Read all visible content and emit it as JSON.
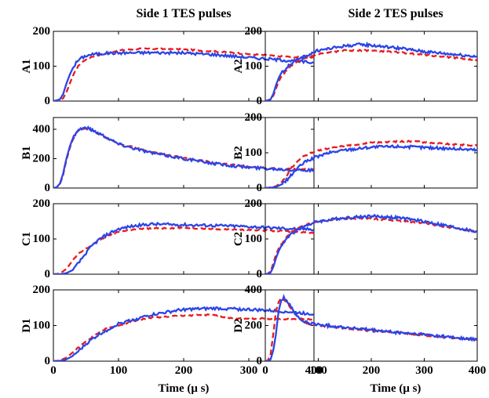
{
  "chart_data": {
    "type": "line",
    "layout": "4x2 grid of panels",
    "column_titles": [
      "Side 1 TES pulses",
      "Side 2 TES pulses"
    ],
    "xlabel": "Time (μ s)",
    "xlim": [
      0,
      400
    ],
    "x_ticks": [
      0,
      100,
      200,
      300,
      400
    ],
    "series_styles": [
      {
        "name": "series 1",
        "color": "#2b45e8",
        "style": "solid"
      },
      {
        "name": "series 2",
        "color": "#e81b1b",
        "style": "dashed"
      }
    ],
    "panels": [
      {
        "label": "A1",
        "ylim": [
          0,
          200
        ],
        "y_ticks": [
          0,
          100,
          200
        ],
        "blue": [
          [
            0,
            0
          ],
          [
            5,
            2
          ],
          [
            10,
            5
          ],
          [
            15,
            20
          ],
          [
            20,
            50
          ],
          [
            25,
            75
          ],
          [
            30,
            95
          ],
          [
            35,
            110
          ],
          [
            40,
            120
          ],
          [
            50,
            130
          ],
          [
            60,
            134
          ],
          [
            80,
            137
          ],
          [
            100,
            138
          ],
          [
            150,
            139
          ],
          [
            200,
            138
          ],
          [
            250,
            133
          ],
          [
            300,
            125
          ],
          [
            350,
            118
          ],
          [
            400,
            110
          ]
        ],
        "red": [
          [
            0,
            0
          ],
          [
            10,
            3
          ],
          [
            15,
            8
          ],
          [
            20,
            25
          ],
          [
            25,
            50
          ],
          [
            30,
            72
          ],
          [
            35,
            90
          ],
          [
            40,
            105
          ],
          [
            50,
            120
          ],
          [
            60,
            128
          ],
          [
            80,
            137
          ],
          [
            100,
            145
          ],
          [
            130,
            150
          ],
          [
            150,
            150
          ],
          [
            200,
            148
          ],
          [
            250,
            142
          ],
          [
            300,
            135
          ],
          [
            350,
            128
          ],
          [
            400,
            124
          ]
        ]
      },
      {
        "label": "B1",
        "ylim": [
          0,
          480
        ],
        "y_ticks": [
          0,
          200,
          400
        ],
        "blue": [
          [
            0,
            0
          ],
          [
            5,
            5
          ],
          [
            10,
            30
          ],
          [
            15,
            100
          ],
          [
            20,
            200
          ],
          [
            25,
            280
          ],
          [
            30,
            340
          ],
          [
            35,
            380
          ],
          [
            40,
            400
          ],
          [
            45,
            408
          ],
          [
            50,
            410
          ],
          [
            55,
            405
          ],
          [
            60,
            395
          ],
          [
            80,
            350
          ],
          [
            100,
            300
          ],
          [
            150,
            240
          ],
          [
            200,
            200
          ],
          [
            250,
            165
          ],
          [
            300,
            140
          ],
          [
            350,
            128
          ],
          [
            400,
            120
          ]
        ],
        "red": [
          [
            0,
            0
          ],
          [
            5,
            5
          ],
          [
            10,
            25
          ],
          [
            15,
            90
          ],
          [
            20,
            190
          ],
          [
            25,
            270
          ],
          [
            30,
            330
          ],
          [
            35,
            375
          ],
          [
            40,
            395
          ],
          [
            45,
            405
          ],
          [
            50,
            408
          ],
          [
            55,
            400
          ],
          [
            60,
            390
          ],
          [
            80,
            345
          ],
          [
            100,
            305
          ],
          [
            150,
            245
          ],
          [
            200,
            205
          ],
          [
            250,
            170
          ],
          [
            300,
            145
          ],
          [
            350,
            130
          ],
          [
            400,
            125
          ]
        ]
      },
      {
        "label": "B2",
        "ylim": [
          0,
          200
        ],
        "y_ticks": [
          0,
          100,
          200
        ],
        "blue": [
          [
            0,
            0
          ],
          [
            10,
            1
          ],
          [
            20,
            3
          ],
          [
            30,
            10
          ],
          [
            40,
            22
          ],
          [
            50,
            38
          ],
          [
            60,
            55
          ],
          [
            70,
            68
          ],
          [
            80,
            78
          ],
          [
            100,
            90
          ],
          [
            120,
            100
          ],
          [
            150,
            108
          ],
          [
            200,
            116
          ],
          [
            250,
            118
          ],
          [
            300,
            115
          ],
          [
            350,
            112
          ],
          [
            400,
            108
          ]
        ],
        "red": [
          [
            0,
            0
          ],
          [
            10,
            2
          ],
          [
            20,
            5
          ],
          [
            30,
            15
          ],
          [
            40,
            35
          ],
          [
            50,
            58
          ],
          [
            60,
            75
          ],
          [
            70,
            88
          ],
          [
            80,
            96
          ],
          [
            100,
            106
          ],
          [
            120,
            112
          ],
          [
            150,
            120
          ],
          [
            200,
            128
          ],
          [
            250,
            132
          ],
          [
            280,
            133
          ],
          [
            300,
            130
          ],
          [
            350,
            124
          ],
          [
            400,
            120
          ]
        ]
      },
      {
        "label": "C1",
        "ylim": [
          0,
          200
        ],
        "y_ticks": [
          0,
          100,
          200
        ],
        "blue": [
          [
            0,
            0
          ],
          [
            10,
            0
          ],
          [
            20,
            3
          ],
          [
            30,
            12
          ],
          [
            40,
            35
          ],
          [
            50,
            60
          ],
          [
            60,
            82
          ],
          [
            70,
            98
          ],
          [
            80,
            110
          ],
          [
            90,
            120
          ],
          [
            100,
            128
          ],
          [
            120,
            136
          ],
          [
            150,
            142
          ],
          [
            200,
            140
          ],
          [
            250,
            138
          ],
          [
            300,
            135
          ],
          [
            350,
            130
          ],
          [
            400,
            127
          ]
        ],
        "red": [
          [
            0,
            0
          ],
          [
            10,
            2
          ],
          [
            20,
            15
          ],
          [
            30,
            40
          ],
          [
            40,
            60
          ],
          [
            50,
            72
          ],
          [
            60,
            84
          ],
          [
            70,
            96
          ],
          [
            80,
            106
          ],
          [
            90,
            114
          ],
          [
            100,
            120
          ],
          [
            120,
            126
          ],
          [
            150,
            130
          ],
          [
            200,
            132
          ],
          [
            250,
            128
          ],
          [
            300,
            126
          ],
          [
            350,
            122
          ],
          [
            400,
            118
          ]
        ]
      },
      {
        "label": "C2",
        "ylim": [
          0,
          200
        ],
        "y_ticks": [
          0,
          100,
          200
        ],
        "blue": [
          [
            0,
            0
          ],
          [
            5,
            1
          ],
          [
            10,
            5
          ],
          [
            15,
            20
          ],
          [
            20,
            45
          ],
          [
            25,
            65
          ],
          [
            30,
            80
          ],
          [
            40,
            100
          ],
          [
            50,
            115
          ],
          [
            60,
            125
          ],
          [
            80,
            140
          ],
          [
            100,
            150
          ],
          [
            150,
            160
          ],
          [
            200,
            165
          ],
          [
            250,
            160
          ],
          [
            300,
            150
          ],
          [
            350,
            135
          ],
          [
            400,
            120
          ]
        ],
        "red": [
          [
            0,
            0
          ],
          [
            5,
            2
          ],
          [
            10,
            8
          ],
          [
            15,
            30
          ],
          [
            20,
            55
          ],
          [
            25,
            72
          ],
          [
            30,
            85
          ],
          [
            40,
            105
          ],
          [
            50,
            120
          ],
          [
            60,
            130
          ],
          [
            80,
            142
          ],
          [
            100,
            150
          ],
          [
            150,
            158
          ],
          [
            200,
            158
          ],
          [
            250,
            152
          ],
          [
            300,
            145
          ],
          [
            350,
            132
          ],
          [
            400,
            120
          ]
        ]
      },
      {
        "label": "D1",
        "ylim": [
          0,
          200
        ],
        "y_ticks": [
          0,
          100,
          200
        ],
        "blue": [
          [
            0,
            0
          ],
          [
            10,
            1
          ],
          [
            20,
            5
          ],
          [
            30,
            15
          ],
          [
            40,
            30
          ],
          [
            50,
            48
          ],
          [
            60,
            62
          ],
          [
            70,
            75
          ],
          [
            80,
            85
          ],
          [
            90,
            95
          ],
          [
            100,
            105
          ],
          [
            120,
            115
          ],
          [
            150,
            130
          ],
          [
            200,
            145
          ],
          [
            250,
            148
          ],
          [
            300,
            145
          ],
          [
            350,
            140
          ],
          [
            400,
            132
          ]
        ],
        "red": [
          [
            0,
            0
          ],
          [
            10,
            2
          ],
          [
            20,
            10
          ],
          [
            30,
            25
          ],
          [
            40,
            40
          ],
          [
            50,
            55
          ],
          [
            60,
            68
          ],
          [
            70,
            80
          ],
          [
            80,
            90
          ],
          [
            100,
            100
          ],
          [
            120,
            112
          ],
          [
            150,
            122
          ],
          [
            200,
            128
          ],
          [
            230,
            130
          ],
          [
            250,
            128
          ],
          [
            270,
            122
          ],
          [
            300,
            118
          ],
          [
            320,
            120
          ],
          [
            350,
            118
          ],
          [
            400,
            118
          ]
        ]
      },
      {
        "label": "D2",
        "ylim": [
          0,
          400
        ],
        "y_ticks": [
          0,
          200,
          400
        ],
        "blue": [
          [
            0,
            0
          ],
          [
            5,
            0
          ],
          [
            10,
            10
          ],
          [
            15,
            60
          ],
          [
            20,
            150
          ],
          [
            25,
            280
          ],
          [
            30,
            340
          ],
          [
            35,
            355
          ],
          [
            40,
            345
          ],
          [
            50,
            300
          ],
          [
            60,
            250
          ],
          [
            70,
            225
          ],
          [
            80,
            215
          ],
          [
            100,
            205
          ],
          [
            150,
            190
          ],
          [
            200,
            175
          ],
          [
            250,
            160
          ],
          [
            300,
            150
          ],
          [
            350,
            135
          ],
          [
            400,
            120
          ]
        ],
        "red": [
          [
            0,
            0
          ],
          [
            5,
            5
          ],
          [
            10,
            40
          ],
          [
            15,
            150
          ],
          [
            20,
            280
          ],
          [
            25,
            330
          ],
          [
            30,
            355
          ],
          [
            35,
            345
          ],
          [
            40,
            330
          ],
          [
            50,
            290
          ],
          [
            60,
            250
          ],
          [
            70,
            225
          ],
          [
            80,
            210
          ],
          [
            100,
            200
          ],
          [
            150,
            185
          ],
          [
            200,
            170
          ],
          [
            250,
            160
          ],
          [
            300,
            145
          ],
          [
            350,
            132
          ],
          [
            400,
            118
          ]
        ]
      },
      {
        "label": "A2",
        "ylim": [
          0,
          200
        ],
        "y_ticks": [
          0,
          100,
          200
        ],
        "blue": [
          [
            0,
            0
          ],
          [
            5,
            2
          ],
          [
            10,
            5
          ],
          [
            15,
            20
          ],
          [
            20,
            45
          ],
          [
            25,
            65
          ],
          [
            30,
            80
          ],
          [
            40,
            95
          ],
          [
            50,
            110
          ],
          [
            60,
            118
          ],
          [
            80,
            132
          ],
          [
            100,
            145
          ],
          [
            150,
            158
          ],
          [
            180,
            162
          ],
          [
            200,
            160
          ],
          [
            250,
            152
          ],
          [
            300,
            142
          ],
          [
            350,
            135
          ],
          [
            400,
            128
          ]
        ],
        "red": [
          [
            0,
            0
          ],
          [
            10,
            5
          ],
          [
            15,
            15
          ],
          [
            20,
            35
          ],
          [
            25,
            55
          ],
          [
            30,
            70
          ],
          [
            40,
            88
          ],
          [
            50,
            102
          ],
          [
            60,
            112
          ],
          [
            80,
            125
          ],
          [
            100,
            135
          ],
          [
            150,
            145
          ],
          [
            200,
            145
          ],
          [
            250,
            140
          ],
          [
            300,
            132
          ],
          [
            350,
            125
          ],
          [
            400,
            118
          ]
        ]
      }
    ]
  }
}
